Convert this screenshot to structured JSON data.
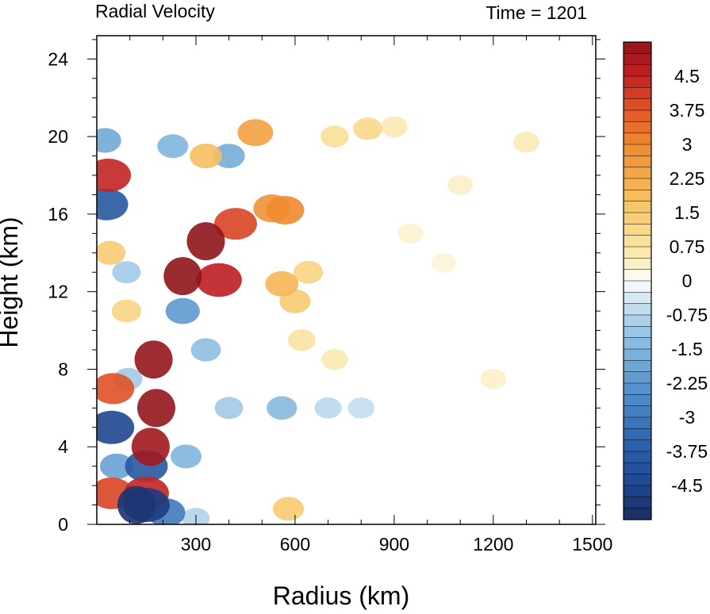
{
  "chart_data": {
    "type": "heatmap",
    "title_left": "Radial Velocity",
    "title_right": "Time = 1201",
    "xlabel": "Radius (km)",
    "ylabel": "Height (km)",
    "xlim": [
      0,
      1510
    ],
    "ylim": [
      0,
      25.2
    ],
    "x_ticks": [
      300,
      600,
      900,
      1200,
      1500
    ],
    "x_minor_step": 100,
    "y_ticks": [
      0,
      4,
      8,
      12,
      16,
      20,
      24
    ],
    "y_minor_step": 1,
    "colorbar": {
      "range": [
        -5.25,
        5.25
      ],
      "level_step": 0.25,
      "label_values": [
        4.5,
        3.75,
        3,
        2.25,
        1.5,
        0.75,
        0,
        -0.75,
        -1.5,
        -2.25,
        -3,
        -3.75,
        -4.5
      ],
      "label_texts": [
        "4.5",
        "3.75",
        "3",
        "2.25",
        "1.5",
        "0.75",
        "0",
        "-0.75",
        "-1.5",
        "-2.25",
        "-3",
        "-3.75",
        "-4.5"
      ],
      "palette": [
        "#1b2c62",
        "#1f4690",
        "#2e66b0",
        "#4f8dc8",
        "#80b5dc",
        "#b5d5ec",
        "#e2eff8",
        "#ffffff",
        "#fbf0c8",
        "#f9dd8f",
        "#f6b654",
        "#ef8a30",
        "#de4a26",
        "#be1d22",
        "#8e151b"
      ],
      "palette_stops": [
        -5.25,
        -4.5,
        -3.5,
        -2.5,
        -1.5,
        -0.75,
        -0.25,
        0,
        0.35,
        1.0,
        2.0,
        3.0,
        3.9,
        4.6,
        5.25
      ]
    },
    "features": [
      {
        "x": 180,
        "y": 6,
        "value": 5.2
      },
      {
        "x": 172,
        "y": 8.5,
        "value": 5.2
      },
      {
        "x": 163,
        "y": 4,
        "value": 5.0
      },
      {
        "x": 150,
        "y": 1.6,
        "value": 4.5
      },
      {
        "x": 150,
        "y": 3,
        "value": -4.0
      },
      {
        "x": 120,
        "y": 1.0,
        "value": -5.0
      },
      {
        "x": 150,
        "y": 1.0,
        "value": -4.8
      },
      {
        "x": 210,
        "y": 0.6,
        "value": -3.0
      },
      {
        "x": 260,
        "y": 12.8,
        "value": 5.25
      },
      {
        "x": 330,
        "y": 14.6,
        "value": 5.25
      },
      {
        "x": 420,
        "y": 15.5,
        "value": 4.0
      },
      {
        "x": 370,
        "y": 12.6,
        "value": 4.6
      },
      {
        "x": 530,
        "y": 16.3,
        "value": 2.8
      },
      {
        "x": 570,
        "y": 16.2,
        "value": 3.0
      },
      {
        "x": 560,
        "y": 12.4,
        "value": 2.0
      },
      {
        "x": 600,
        "y": 11.5,
        "value": 1.5
      },
      {
        "x": 640,
        "y": 13.0,
        "value": 1.2
      },
      {
        "x": 620,
        "y": 9.5,
        "value": 0.8
      },
      {
        "x": 720,
        "y": 8.5,
        "value": 0.6
      },
      {
        "x": 820,
        "y": 20.4,
        "value": 1.1
      },
      {
        "x": 720,
        "y": 20.0,
        "value": 0.9
      },
      {
        "x": 900,
        "y": 20.5,
        "value": 0.6
      },
      {
        "x": 1300,
        "y": 19.7,
        "value": 0.55
      },
      {
        "x": 1100,
        "y": 17.5,
        "value": 0.35
      },
      {
        "x": 950,
        "y": 15.0,
        "value": 0.3
      },
      {
        "x": 1200,
        "y": 7.5,
        "value": 0.4
      },
      {
        "x": 1050,
        "y": 13.5,
        "value": 0.25
      },
      {
        "x": 260,
        "y": 11.0,
        "value": -2.2
      },
      {
        "x": 330,
        "y": 9.0,
        "value": -1.3
      },
      {
        "x": 400,
        "y": 6.0,
        "value": -1.0
      },
      {
        "x": 560,
        "y": 6.0,
        "value": -1.4
      },
      {
        "x": 700,
        "y": 6.0,
        "value": -0.7
      },
      {
        "x": 800,
        "y": 6.0,
        "value": -0.6
      },
      {
        "x": 270,
        "y": 3.5,
        "value": -1.5
      },
      {
        "x": 400,
        "y": 19.0,
        "value": -1.7
      },
      {
        "x": 480,
        "y": 20.2,
        "value": 2.5
      },
      {
        "x": 330,
        "y": 19.0,
        "value": 1.8
      },
      {
        "x": 230,
        "y": 19.5,
        "value": -1.5
      },
      {
        "x": 35,
        "y": 18.0,
        "value": 4.5
      },
      {
        "x": 30,
        "y": 16.5,
        "value": -4.0
      },
      {
        "x": 25,
        "y": 19.8,
        "value": -1.8
      },
      {
        "x": 40,
        "y": 14.0,
        "value": 1.5
      },
      {
        "x": 50,
        "y": 7.0,
        "value": 3.8
      },
      {
        "x": 45,
        "y": 5.0,
        "value": -4.5
      },
      {
        "x": 60,
        "y": 3.0,
        "value": -2.0
      },
      {
        "x": 45,
        "y": 1.6,
        "value": 4.0
      },
      {
        "x": 90,
        "y": 11.0,
        "value": 1.2
      },
      {
        "x": 90,
        "y": 13.0,
        "value": -1.0
      },
      {
        "x": 95,
        "y": 7.5,
        "value": -1.0
      },
      {
        "x": 580,
        "y": 0.8,
        "value": 1.5
      },
      {
        "x": 300,
        "y": 0.3,
        "value": -0.8
      }
    ]
  }
}
